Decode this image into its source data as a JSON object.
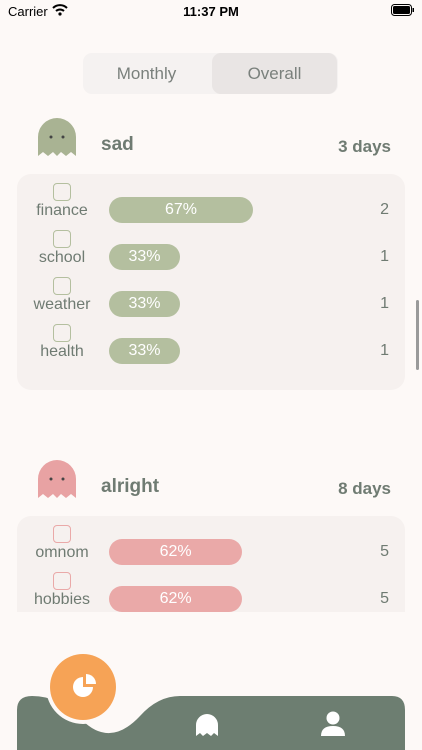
{
  "status_bar": {
    "carrier": "Carrier",
    "time": "11:37 PM"
  },
  "tabs": {
    "options": [
      "Monthly",
      "Overall"
    ],
    "selected": 1
  },
  "moods": [
    {
      "name": "sad",
      "days": "3 days",
      "color": "#b4bf9f",
      "icon_color": "#a9b393",
      "rows": [
        {
          "label": "finance",
          "percent": 67,
          "percent_label": "67%",
          "count": 2
        },
        {
          "label": "school",
          "percent": 33,
          "percent_label": "33%",
          "count": 1
        },
        {
          "label": "weather",
          "percent": 33,
          "percent_label": "33%",
          "count": 1
        },
        {
          "label": "health",
          "percent": 33,
          "percent_label": "33%",
          "count": 1
        }
      ]
    },
    {
      "name": "alright",
      "days": "8 days",
      "color": "#eaa9a8",
      "icon_color": "#e8a2a3",
      "rows": [
        {
          "label": "omnom",
          "percent": 62,
          "percent_label": "62%",
          "count": 5
        },
        {
          "label": "hobbies",
          "percent": 62,
          "percent_label": "62%",
          "count": 5
        }
      ]
    }
  ]
}
